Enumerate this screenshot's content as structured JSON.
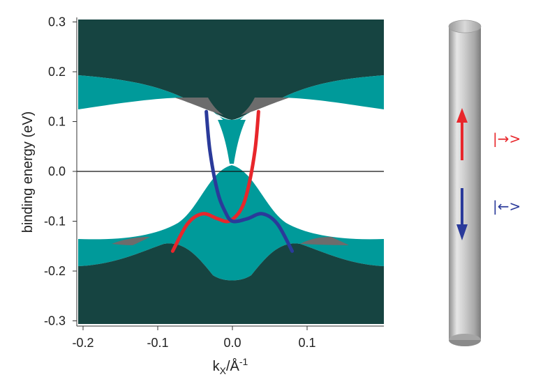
{
  "chart_data": {
    "type": "band_structure",
    "xlabel": "k",
    "xlabel_sub": "X",
    "xlabel_unit": "/Å",
    "xlabel_sup": "-1",
    "ylabel": "binding energy (eV)",
    "xlim": [
      -0.21,
      0.1
    ],
    "ylim": [
      -0.31,
      0.31
    ],
    "x_ticks": [
      -0.2,
      -0.1,
      0.0,
      0.1
    ],
    "x_tick_labels": [
      "-0.2",
      "-0.1",
      "0.0",
      "0.1"
    ],
    "y_ticks": [
      0.3,
      0.2,
      0.1,
      0.0,
      -0.1,
      -0.2,
      -0.3
    ],
    "y_tick_labels": [
      "0.3",
      "0.2",
      "0.1",
      "0.0",
      "-0.1",
      "-0.2",
      "-0.3"
    ],
    "zero_line": 0.0,
    "series": [
      {
        "color": "#e8262b",
        "points": [
          [
            -0.08,
            -0.16
          ],
          [
            -0.06,
            -0.105
          ],
          [
            -0.04,
            -0.085
          ],
          [
            -0.02,
            -0.095
          ],
          [
            -0.005,
            -0.1
          ],
          [
            0.01,
            -0.08
          ],
          [
            0.02,
            -0.04
          ],
          [
            0.03,
            0.04
          ],
          [
            0.035,
            0.12
          ]
        ]
      },
      {
        "color": "#2a3a9a",
        "points": [
          [
            -0.035,
            0.12
          ],
          [
            -0.03,
            0.04
          ],
          [
            -0.02,
            -0.04
          ],
          [
            -0.01,
            -0.08
          ],
          [
            0.0,
            -0.1
          ],
          [
            0.02,
            -0.095
          ],
          [
            0.04,
            -0.085
          ],
          [
            0.06,
            -0.105
          ],
          [
            0.08,
            -0.16
          ]
        ]
      }
    ],
    "colors": {
      "bulk_dark": "#164441",
      "bulk_teal": "#009a9a",
      "overlap_gray": "#6c6c6c",
      "red": "#e8262b",
      "blue": "#2a3a9a"
    },
    "inset": {
      "type": "nanowire-spin-diagram",
      "up_label": "|→>",
      "down_label": "|←>",
      "up_color": "#e8262b",
      "down_color": "#2a3a9a"
    }
  }
}
